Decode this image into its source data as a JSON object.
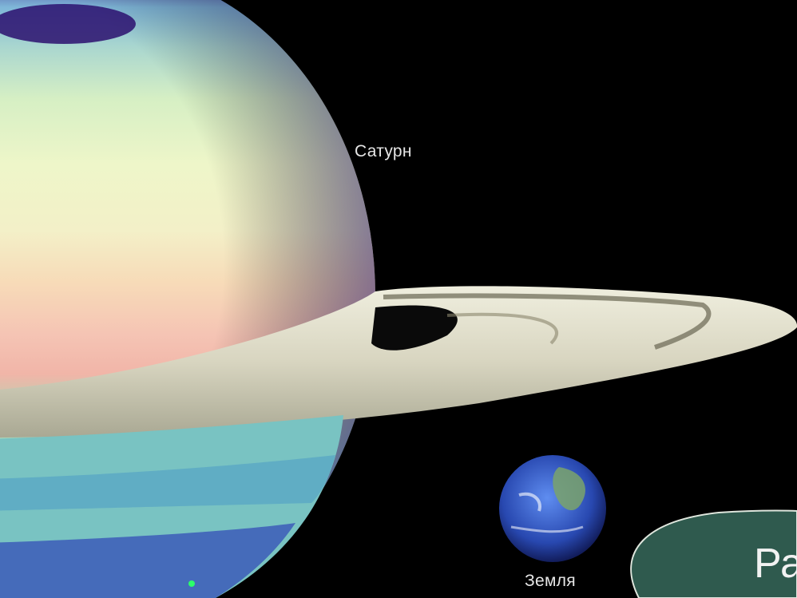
{
  "labels": {
    "saturn": "Сатурн",
    "earth": "Земля"
  },
  "bubble": {
    "text": "Ра",
    "fill": "#2f5a4e"
  },
  "colors": {
    "background": "#000000",
    "ring": "#d9d6c3",
    "earth_ocean": "#2f54c4"
  }
}
